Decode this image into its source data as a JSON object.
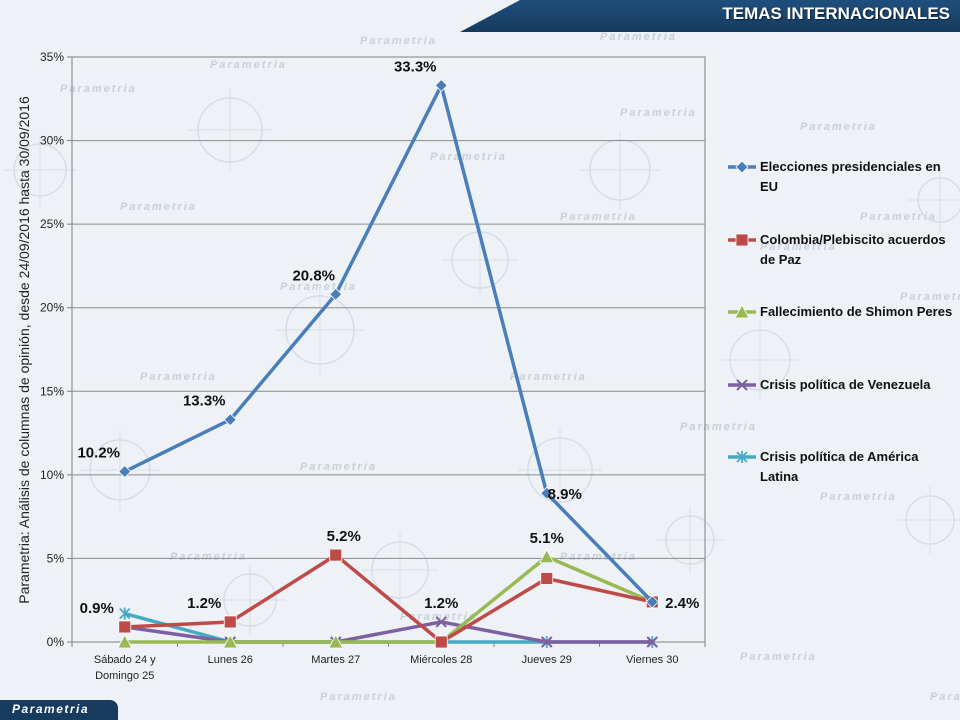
{
  "header": {
    "title": "TEMAS INTERNACIONALES"
  },
  "footer": {
    "logo_text": "Parametria",
    "watermark_text": "Parametria"
  },
  "chart_data": {
    "type": "line",
    "ylabel": "Parametria: Análisis de columnas de opinión, desde 24/09/2016 hasta  30/09/2016",
    "xlabel": "",
    "categories": [
      "Sábado 24 y Domingo 25",
      "Lunes 26",
      "Martes 27",
      "Miércoles 28",
      "Jueves 29",
      "Viernes 30"
    ],
    "ylim": [
      0,
      35
    ],
    "yticks": [
      "0%",
      "5%",
      "10%",
      "15%",
      "20%",
      "25%",
      "30%",
      "35%"
    ],
    "grid": true,
    "legend_position": "right",
    "series": [
      {
        "name": "Elecciones presidenciales en EU",
        "color": "#4a7ebb",
        "marker": "diamond",
        "values": [
          10.2,
          13.3,
          20.8,
          33.3,
          8.9,
          2.4
        ],
        "labels": [
          "10.2%",
          "13.3%",
          "20.8%",
          "33.3%",
          "8.9%",
          "2.4%"
        ]
      },
      {
        "name": "Colombia/Plebiscito acuerdos de Paz",
        "color": "#be4b48",
        "marker": "square",
        "values": [
          0.9,
          1.2,
          5.2,
          0.0,
          3.8,
          2.4
        ],
        "labels": [
          "0.9%",
          "1.2%",
          "5.2%",
          "",
          "",
          ""
        ]
      },
      {
        "name": "Fallecimiento de Shimon Peres",
        "color": "#98b954",
        "marker": "triangle",
        "values": [
          0.0,
          0.0,
          0.0,
          0.0,
          5.1,
          2.4
        ],
        "labels": [
          "",
          "",
          "",
          "",
          "5.1%",
          ""
        ]
      },
      {
        "name": "Crisis política de Venezuela",
        "color": "#7d60a0",
        "marker": "x",
        "values": [
          0.9,
          0.0,
          0.0,
          1.2,
          0.0,
          0.0
        ],
        "labels": [
          "",
          "",
          "",
          "1.2%",
          "",
          ""
        ]
      },
      {
        "name": "Crisis política de América Latina",
        "color": "#46aac5",
        "marker": "star",
        "values": [
          1.7,
          0.0,
          0.0,
          0.0,
          0.0,
          0.0
        ],
        "labels": [
          "",
          "",
          "",
          "",
          "",
          ""
        ]
      }
    ]
  }
}
